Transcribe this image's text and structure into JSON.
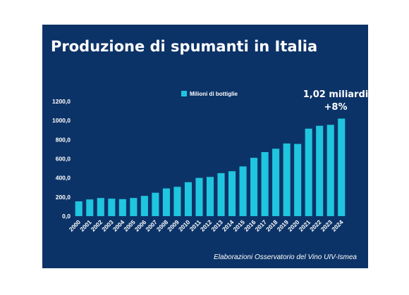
{
  "title": "Produzione di spumanti in Italia",
  "source": "Elaborazioni Osservatorio del Vino UIV-Ismea",
  "colors": {
    "background": "#0c3367",
    "bar": "#20c5df",
    "text": "#ffffff"
  },
  "chart_data": {
    "type": "bar",
    "categories": [
      "2000",
      "2001",
      "2002",
      "2003",
      "2004",
      "2005",
      "2006",
      "2007",
      "2008",
      "2009",
      "2010",
      "2011",
      "2012",
      "2013",
      "2014",
      "2015",
      "2016",
      "2017",
      "2018",
      "2019",
      "2020",
      "2021",
      "2022",
      "2023",
      "2024"
    ],
    "series": [
      {
        "name": "Milioni di bottiglie",
        "values": [
          155,
          175,
          190,
          183,
          178,
          190,
          212,
          245,
          290,
          307,
          355,
          400,
          410,
          450,
          470,
          520,
          610,
          670,
          705,
          760,
          755,
          915,
          945,
          955,
          1020
        ]
      }
    ],
    "y_ticks": [
      "0,0",
      "200,0",
      "400,0",
      "600,0",
      "800,0",
      "1000,0",
      "1200,0"
    ],
    "ylim": [
      0,
      1200
    ],
    "legend_position": "top-center",
    "grid": false,
    "annotation": {
      "line1": "1,02 miliardi",
      "line2": "+8%"
    }
  }
}
